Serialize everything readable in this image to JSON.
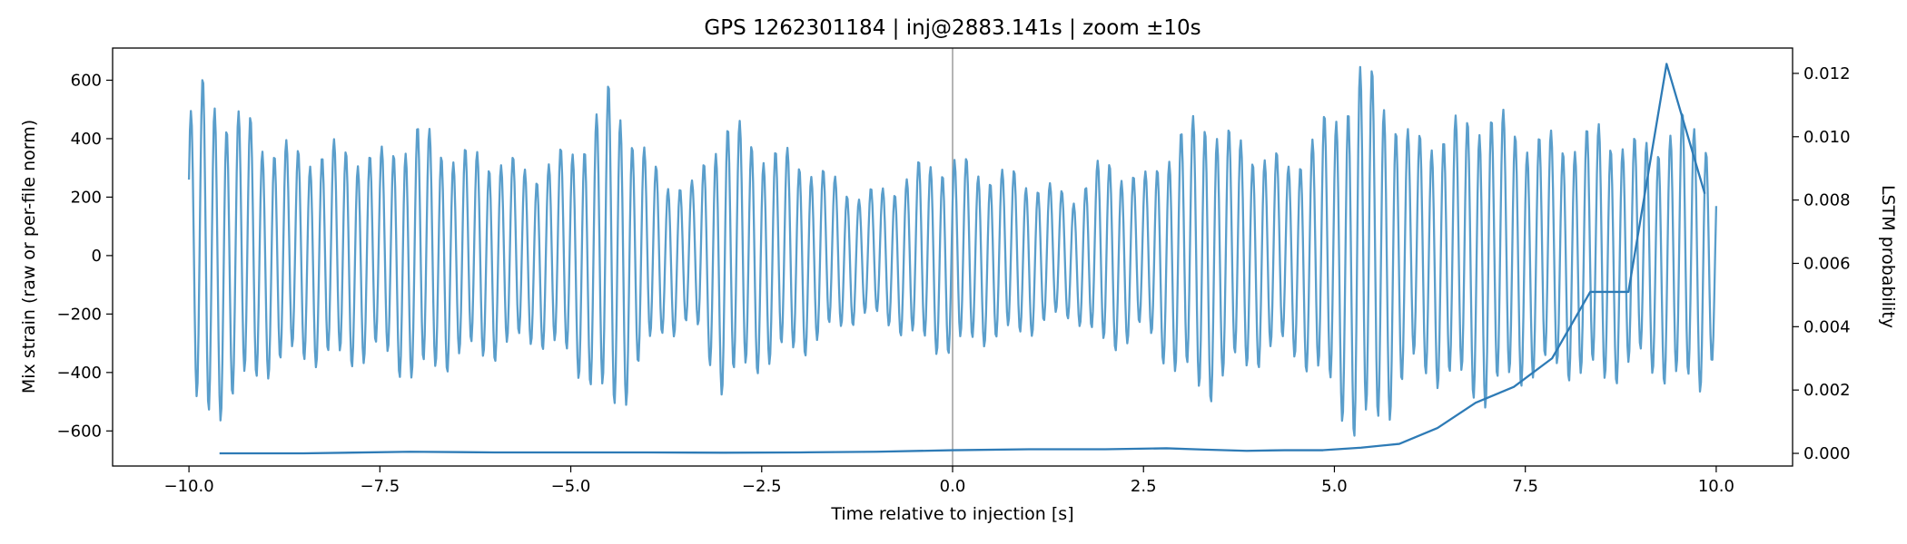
{
  "chart_data": {
    "type": "line",
    "title": "GPS 1262301184 | inj@2883.141s | zoom ±10s",
    "xlabel": "Time relative to injection [s]",
    "ylabel": "Mix strain (raw or per-file norm)",
    "y2label": "LSTM probability",
    "xlim": [
      -11.0,
      11.0
    ],
    "ylim": [
      -720,
      710
    ],
    "y2lim": [
      -0.0004,
      0.0128
    ],
    "x_ticks": [
      -10.0,
      -7.5,
      -5.0,
      -2.5,
      0.0,
      2.5,
      5.0,
      7.5,
      10.0
    ],
    "x_tick_labels": [
      "−10.0",
      "−7.5",
      "−5.0",
      "−2.5",
      "0.0",
      "2.5",
      "5.0",
      "7.5",
      "10.0"
    ],
    "y_ticks": [
      -600,
      -400,
      -200,
      0,
      200,
      400,
      600
    ],
    "y_tick_labels": [
      "−600",
      "−400",
      "−200",
      "0",
      "200",
      "400",
      "600"
    ],
    "y2_ticks": [
      0.0,
      0.002,
      0.004,
      0.006,
      0.008,
      0.01,
      0.012
    ],
    "y2_tick_labels": [
      "0.000",
      "0.002",
      "0.004",
      "0.006",
      "0.008",
      "0.010",
      "0.012"
    ],
    "injection_marker_x": 0.0,
    "grid": false,
    "colors": {
      "strain": "#5a9ecb",
      "probability": "#2e7bb6",
      "marker": "#b4b4b4"
    },
    "series": [
      {
        "axis": "left",
        "sampling": {
          "t_start": -10.0,
          "t_end": 10.0,
          "samples_per_second": 80
        },
        "oscillation_hz": 6.4,
        "envelope": {
          "x": [
            -10.0,
            -9.9,
            -9.75,
            -9.5,
            -9.2,
            -9.0,
            -8.5,
            -8.0,
            -7.5,
            -7.0,
            -6.5,
            -6.0,
            -5.5,
            -5.0,
            -4.7,
            -4.5,
            -4.35,
            -4.1,
            -3.8,
            -3.4,
            -3.0,
            -2.5,
            -2.0,
            -1.6,
            -1.2,
            -0.8,
            -0.4,
            0.0,
            0.4,
            0.8,
            1.2,
            1.6,
            2.0,
            2.5,
            2.9,
            3.3,
            3.7,
            4.0,
            4.4,
            4.8,
            5.0,
            5.3,
            5.6,
            6.0,
            6.5,
            7.0,
            7.5,
            8.0,
            8.5,
            9.0,
            9.3,
            9.6,
            9.85,
            10.0
          ],
          "amplitude": [
            460,
            540,
            560,
            480,
            440,
            380,
            340,
            360,
            330,
            420,
            340,
            330,
            280,
            350,
            440,
            540,
            500,
            360,
            260,
            230,
            450,
            360,
            320,
            260,
            200,
            230,
            300,
            320,
            280,
            270,
            230,
            200,
            320,
            250,
            380,
            470,
            380,
            350,
            300,
            420,
            460,
            620,
            560,
            380,
            420,
            480,
            400,
            380,
            420,
            360,
            400,
            450,
            420,
            300
          ]
        }
      },
      {
        "axis": "right",
        "x": [
          -9.6,
          -8.5,
          -7.1,
          -6.0,
          -5.0,
          -4.0,
          -3.0,
          -2.0,
          -1.0,
          0.0,
          1.0,
          2.0,
          2.8,
          3.3,
          3.85,
          4.35,
          4.85,
          5.35,
          5.85,
          6.35,
          6.85,
          7.35,
          7.85,
          8.35,
          8.85,
          9.35,
          9.85
        ],
        "values": [
          0.0,
          0.0,
          5e-05,
          3e-05,
          3e-05,
          3e-05,
          2e-05,
          3e-05,
          5e-05,
          0.0001,
          0.00013,
          0.00013,
          0.00016,
          0.00012,
          8e-05,
          0.0001,
          0.0001,
          0.00018,
          0.0003,
          0.0008,
          0.0016,
          0.0021,
          0.003,
          0.0051,
          0.0051,
          0.0123,
          0.0082
        ]
      }
    ]
  }
}
